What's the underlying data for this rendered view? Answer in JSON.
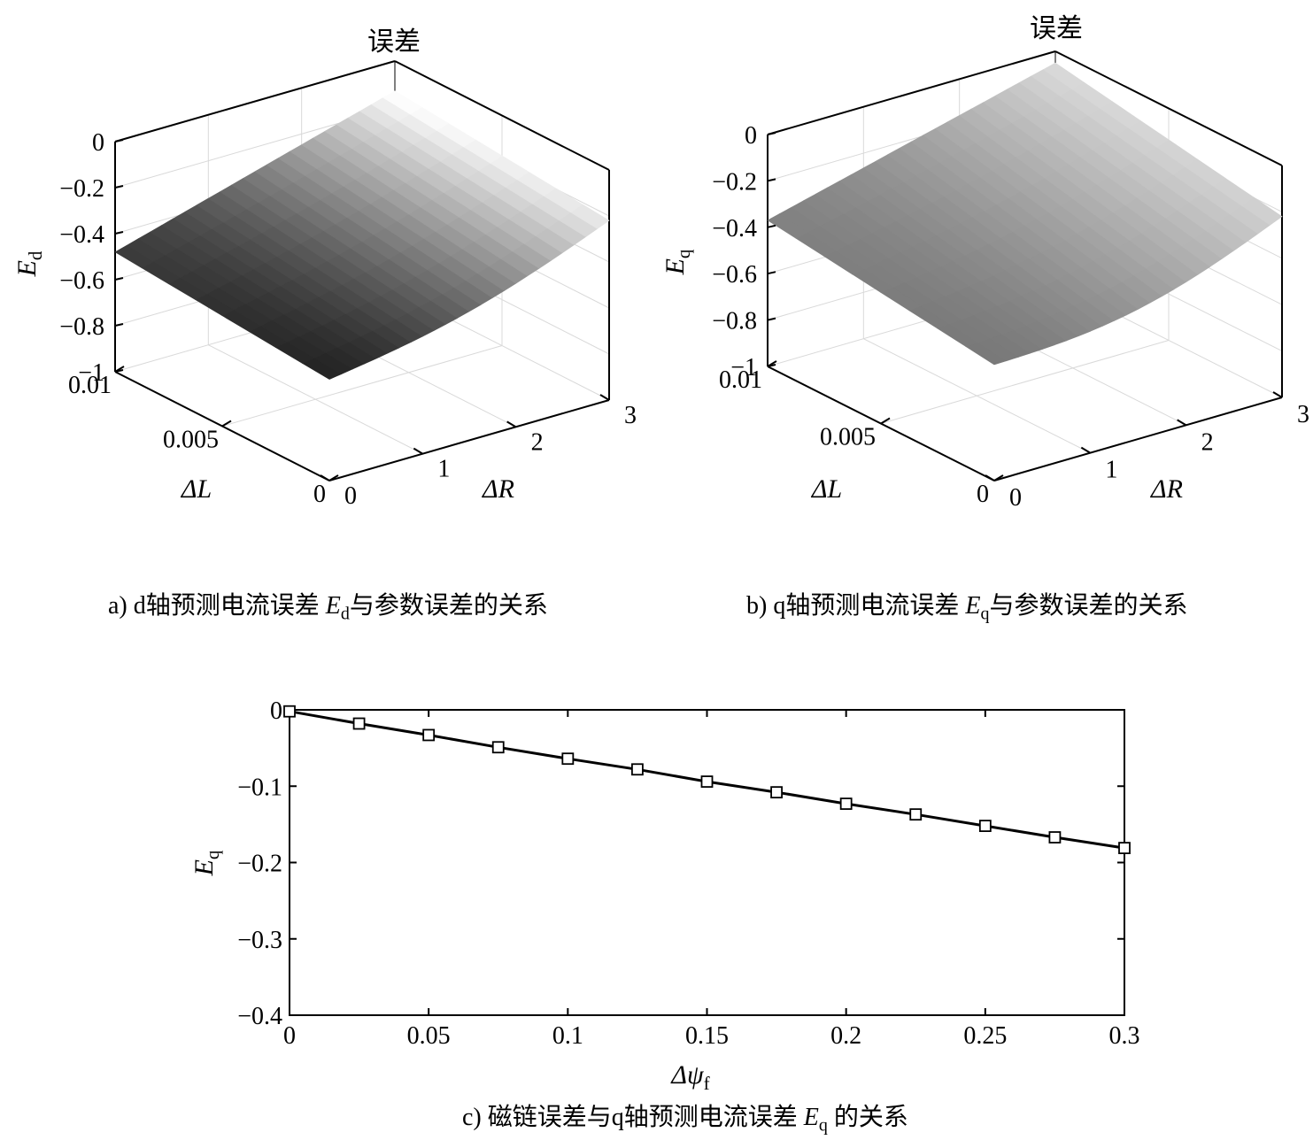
{
  "captions": {
    "a": {
      "prefix": "a) d轴预测电流误差 ",
      "var": "E",
      "sub": "d",
      "suffix": "与参数误差的关系"
    },
    "b": {
      "prefix": "b) q轴预测电流误差 ",
      "var": "E",
      "sub": "q",
      "suffix": "与参数误差的关系"
    },
    "c": {
      "prefix": "c) 磁链误差与q轴预测电流误差 ",
      "var": "E",
      "sub": "q",
      "suffix": " 的关系"
    }
  },
  "chart_data": [
    {
      "type": "surface",
      "title": "误差",
      "zlabel": {
        "var": "E",
        "sub": "d"
      },
      "xlabel": "ΔL",
      "ylabel": "ΔR",
      "z_ticks": [
        "0",
        "−0.2",
        "−0.4",
        "−0.6",
        "−0.8",
        "−1"
      ],
      "zlim": [
        -1,
        0
      ],
      "x_ticks": [
        "0.01",
        "0.005",
        "0"
      ],
      "xlim": [
        0,
        0.01
      ],
      "y_ticks": [
        "0",
        "1",
        "2",
        "3"
      ],
      "ylim": [
        0,
        3
      ],
      "surface_corners": {
        "dL_0.01_dR_0": -0.48,
        "dL_0_dR_0": -0.56,
        "dL_0_dR_3": -0.22,
        "dL_0.01_dR_3": -0.13
      },
      "colormap": "gray",
      "grid": true
    },
    {
      "type": "surface",
      "title": "误差",
      "zlabel": {
        "var": "E",
        "sub": "q"
      },
      "xlabel": "ΔL",
      "ylabel": "ΔR",
      "z_ticks": [
        "0",
        "−0.2",
        "−0.4",
        "−0.6",
        "−0.8",
        "−1"
      ],
      "zlim": [
        -1,
        0
      ],
      "x_ticks": [
        "0.01",
        "0.005",
        "0"
      ],
      "xlim": [
        0,
        0.01
      ],
      "y_ticks": [
        "0",
        "1",
        "2",
        "3"
      ],
      "ylim": [
        0,
        3
      ],
      "surface_corners": {
        "dL_0.01_dR_0": -0.37,
        "dL_0_dR_0": -0.5,
        "dL_0_dR_3": -0.22,
        "dL_0.01_dR_3": -0.05
      },
      "colormap": "gray",
      "grid": true
    },
    {
      "type": "line",
      "xlabel": {
        "var": "Δψ",
        "sub": "f"
      },
      "ylabel": {
        "var": "E",
        "sub": "q"
      },
      "x_ticks": [
        "0",
        "0.05",
        "0.1",
        "0.15",
        "0.2",
        "0.25",
        "0.3"
      ],
      "y_ticks": [
        "0",
        "−0.1",
        "−0.2",
        "−0.3",
        "−0.4"
      ],
      "xlim": [
        0,
        0.3
      ],
      "ylim": [
        -0.4,
        0
      ],
      "marker": "square",
      "x": [
        0,
        0.025,
        0.05,
        0.075,
        0.1,
        0.125,
        0.15,
        0.175,
        0.2,
        0.225,
        0.25,
        0.275,
        0.3
      ],
      "y": [
        -0.002,
        -0.018,
        -0.033,
        -0.049,
        -0.064,
        -0.078,
        -0.094,
        -0.108,
        -0.123,
        -0.137,
        -0.152,
        -0.167,
        -0.181
      ]
    }
  ]
}
